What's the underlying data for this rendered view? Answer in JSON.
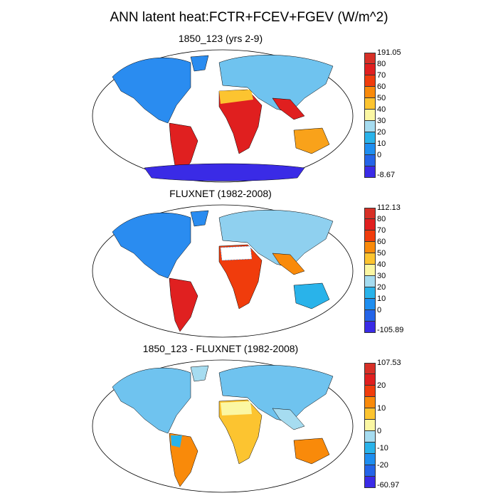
{
  "title": "ANN latent heat:FCTR+FCEV+FGEV (W/m^2)",
  "panels": [
    {
      "subtitle": "1850_123 (yrs 2-9)",
      "colorbar": {
        "labels": [
          "191.05",
          "80",
          "70",
          "60",
          "50",
          "40",
          "30",
          "20",
          "10",
          "0",
          "-8.67"
        ],
        "colors": [
          "#d73027",
          "#e01f1f",
          "#f03c0c",
          "#f98a0a",
          "#fcc430",
          "#fbf7a3",
          "#a6dcf0",
          "#29b3ea",
          "#1e8ef0",
          "#2464e8",
          "#3a2be6"
        ]
      },
      "regions": [
        {
          "name": "north-america",
          "color": "#2a8cf0"
        },
        {
          "name": "south-america",
          "color": "#e02020"
        },
        {
          "name": "africa",
          "color": "#e01f1f"
        },
        {
          "name": "eurasia",
          "color": "#6fc3ef"
        },
        {
          "name": "australia",
          "color": "#f9a21a"
        },
        {
          "name": "antarctica",
          "color": "#3a2be6"
        }
      ]
    },
    {
      "subtitle": "FLUXNET (1982-2008)",
      "colorbar": {
        "labels": [
          "112.13",
          "80",
          "70",
          "60",
          "50",
          "40",
          "30",
          "20",
          "10",
          "0",
          "-105.89"
        ],
        "colors": [
          "#d73027",
          "#e01f1f",
          "#f03c0c",
          "#f98a0a",
          "#fcc430",
          "#fbf7a3",
          "#a6dcf0",
          "#29b3ea",
          "#1e8ef0",
          "#2464e8",
          "#3a2be6"
        ]
      },
      "regions": [
        {
          "name": "north-america",
          "color": "#2a8cf0"
        },
        {
          "name": "south-america",
          "color": "#e02020"
        },
        {
          "name": "africa",
          "color": "#f03c0c"
        },
        {
          "name": "eurasia",
          "color": "#8fd0ef"
        },
        {
          "name": "australia",
          "color": "#29b3ea"
        }
      ]
    },
    {
      "subtitle": "1850_123 - FLUXNET (1982-2008)",
      "colorbar": {
        "labels": [
          "107.53",
          "20",
          "10",
          "0",
          "-10",
          "-20",
          "-60.97"
        ],
        "colors": [
          "#d73027",
          "#e01f1f",
          "#f03c0c",
          "#f98a0a",
          "#fcc430",
          "#fbf7a3",
          "#a6dcf0",
          "#29b3ea",
          "#1e8ef0",
          "#2464e8",
          "#3a2be6"
        ]
      },
      "regions": [
        {
          "name": "north-america",
          "color": "#6fc3ef"
        },
        {
          "name": "south-america",
          "color": "#f98a0a"
        },
        {
          "name": "africa",
          "color": "#fcc430"
        },
        {
          "name": "eurasia",
          "color": "#6fc3ef"
        },
        {
          "name": "australia",
          "color": "#f98a0a"
        }
      ]
    }
  ]
}
